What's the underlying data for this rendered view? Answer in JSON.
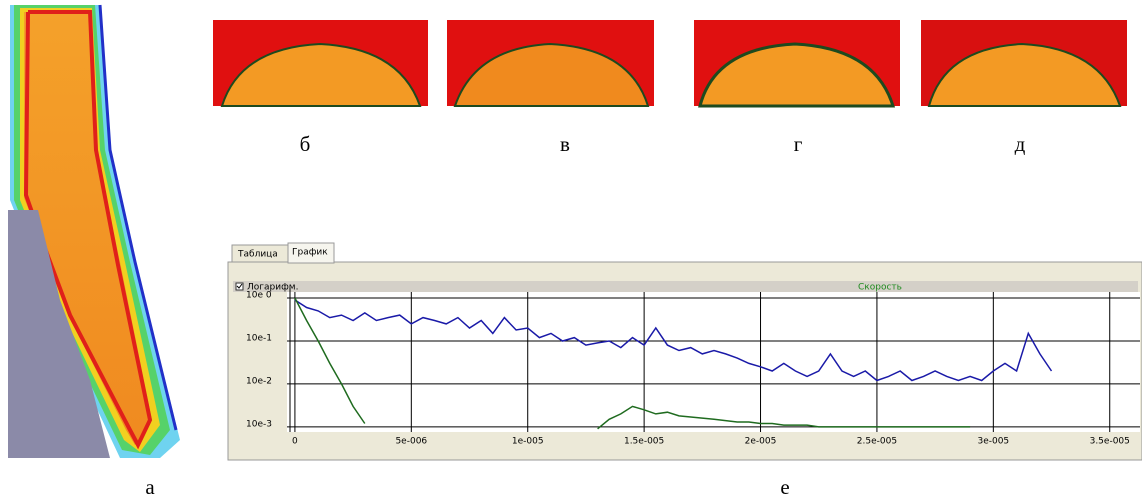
{
  "figure_labels": [
    "а",
    "б",
    "в",
    "г",
    "д",
    "е"
  ],
  "tabs": [
    "Таблица",
    "График"
  ],
  "chart_data": {
    "type": "line",
    "title": "Скорость",
    "checkbox_label": "Логарифм.",
    "log_y": true,
    "grid": true,
    "x": [
      0,
      5e-07,
      1e-06,
      1.5e-06,
      2e-06,
      2.5e-06,
      3e-06,
      3.5e-06,
      4e-06,
      4.5e-06,
      5e-06,
      5.5e-06,
      6e-06,
      6.5e-06,
      7e-06,
      7.5e-06,
      8e-06,
      8.5e-06,
      9e-06,
      9.5e-06,
      1e-05,
      1.05e-05,
      1.1e-05,
      1.15e-05,
      1.2e-05,
      1.25e-05,
      1.3e-05,
      1.35e-05,
      1.4e-05,
      1.45e-05,
      1.5e-05,
      1.55e-05,
      1.6e-05,
      1.65e-05,
      1.7e-05,
      1.75e-05,
      1.8e-05,
      1.85e-05,
      1.9e-05,
      1.95e-05,
      2e-05,
      2.05e-05,
      2.1e-05,
      2.15e-05,
      2.2e-05,
      2.25e-05,
      2.3e-05,
      2.35e-05,
      2.4e-05,
      2.45e-05,
      2.5e-05,
      2.55e-05,
      2.6e-05,
      2.65e-05,
      2.7e-05,
      2.75e-05,
      2.8e-05,
      2.85e-05,
      2.9e-05,
      2.95e-05,
      3e-05,
      3.05e-05,
      3.1e-05,
      3.15e-05,
      3.2e-05,
      3.25e-05
    ],
    "series": [
      {
        "color": "#1a1aa8",
        "values": [
          0.9,
          0.6,
          0.5,
          0.35,
          0.4,
          0.3,
          0.45,
          0.3,
          0.35,
          0.4,
          0.25,
          0.35,
          0.3,
          0.25,
          0.35,
          0.2,
          0.3,
          0.15,
          0.35,
          0.18,
          0.2,
          0.12,
          0.15,
          0.1,
          0.12,
          0.08,
          0.09,
          0.1,
          0.07,
          0.12,
          0.08,
          0.2,
          0.08,
          0.06,
          0.07,
          0.05,
          0.06,
          0.05,
          0.04,
          0.03,
          0.025,
          0.02,
          0.03,
          0.02,
          0.015,
          0.02,
          0.05,
          0.02,
          0.015,
          0.02,
          0.012,
          0.015,
          0.02,
          0.012,
          0.015,
          0.02,
          0.015,
          0.012,
          0.015,
          0.012,
          0.02,
          0.03,
          0.02,
          0.15,
          0.05,
          0.02
        ]
      },
      {
        "color": "#1f6b1f",
        "values": [
          1,
          0.3,
          0.1,
          0.03,
          0.01,
          0.003,
          0.0012,
          null,
          null,
          null,
          null,
          null,
          null,
          null,
          null,
          null,
          null,
          null,
          null,
          null,
          null,
          null,
          null,
          null,
          null,
          null,
          0.0009,
          0.0015,
          0.002,
          0.003,
          0.0025,
          0.002,
          0.0022,
          0.0018,
          0.0017,
          0.0016,
          0.0015,
          0.0014,
          0.0013,
          0.0013,
          0.0012,
          0.0012,
          0.0011,
          0.0011,
          0.0011,
          0.001,
          0.001,
          0.001,
          0.001,
          0.001,
          0.001,
          0.001,
          0.001,
          0.001,
          0.001,
          0.001,
          0.001,
          0.001,
          0.001,
          null,
          null,
          null,
          null,
          null,
          null,
          null
        ]
      }
    ],
    "xlim": [
      -3.4e-07,
      3.63e-05
    ],
    "ylim": [
      0.00076,
      1.38
    ],
    "xticks": [
      0,
      {
        "value": 5e-06,
        "label": "5e-006"
      },
      {
        "value": 1e-05,
        "label": "1e-005"
      },
      {
        "value": 1.5e-05,
        "label": "1.5e-005"
      },
      {
        "value": 2e-05,
        "label": "2e-005"
      },
      {
        "value": 2.5e-05,
        "label": "2.5e-005"
      },
      {
        "value": 3e-05,
        "label": "3e-005"
      },
      {
        "value": 3.5e-05,
        "label": "3.5e-005"
      }
    ],
    "yticks": [
      {
        "value": 1,
        "label": "10e 0"
      },
      {
        "value": 0.1,
        "label": "10e-1"
      },
      {
        "value": 0.01,
        "label": "10e-2"
      },
      {
        "value": 0.001,
        "label": "10e-3"
      }
    ]
  }
}
